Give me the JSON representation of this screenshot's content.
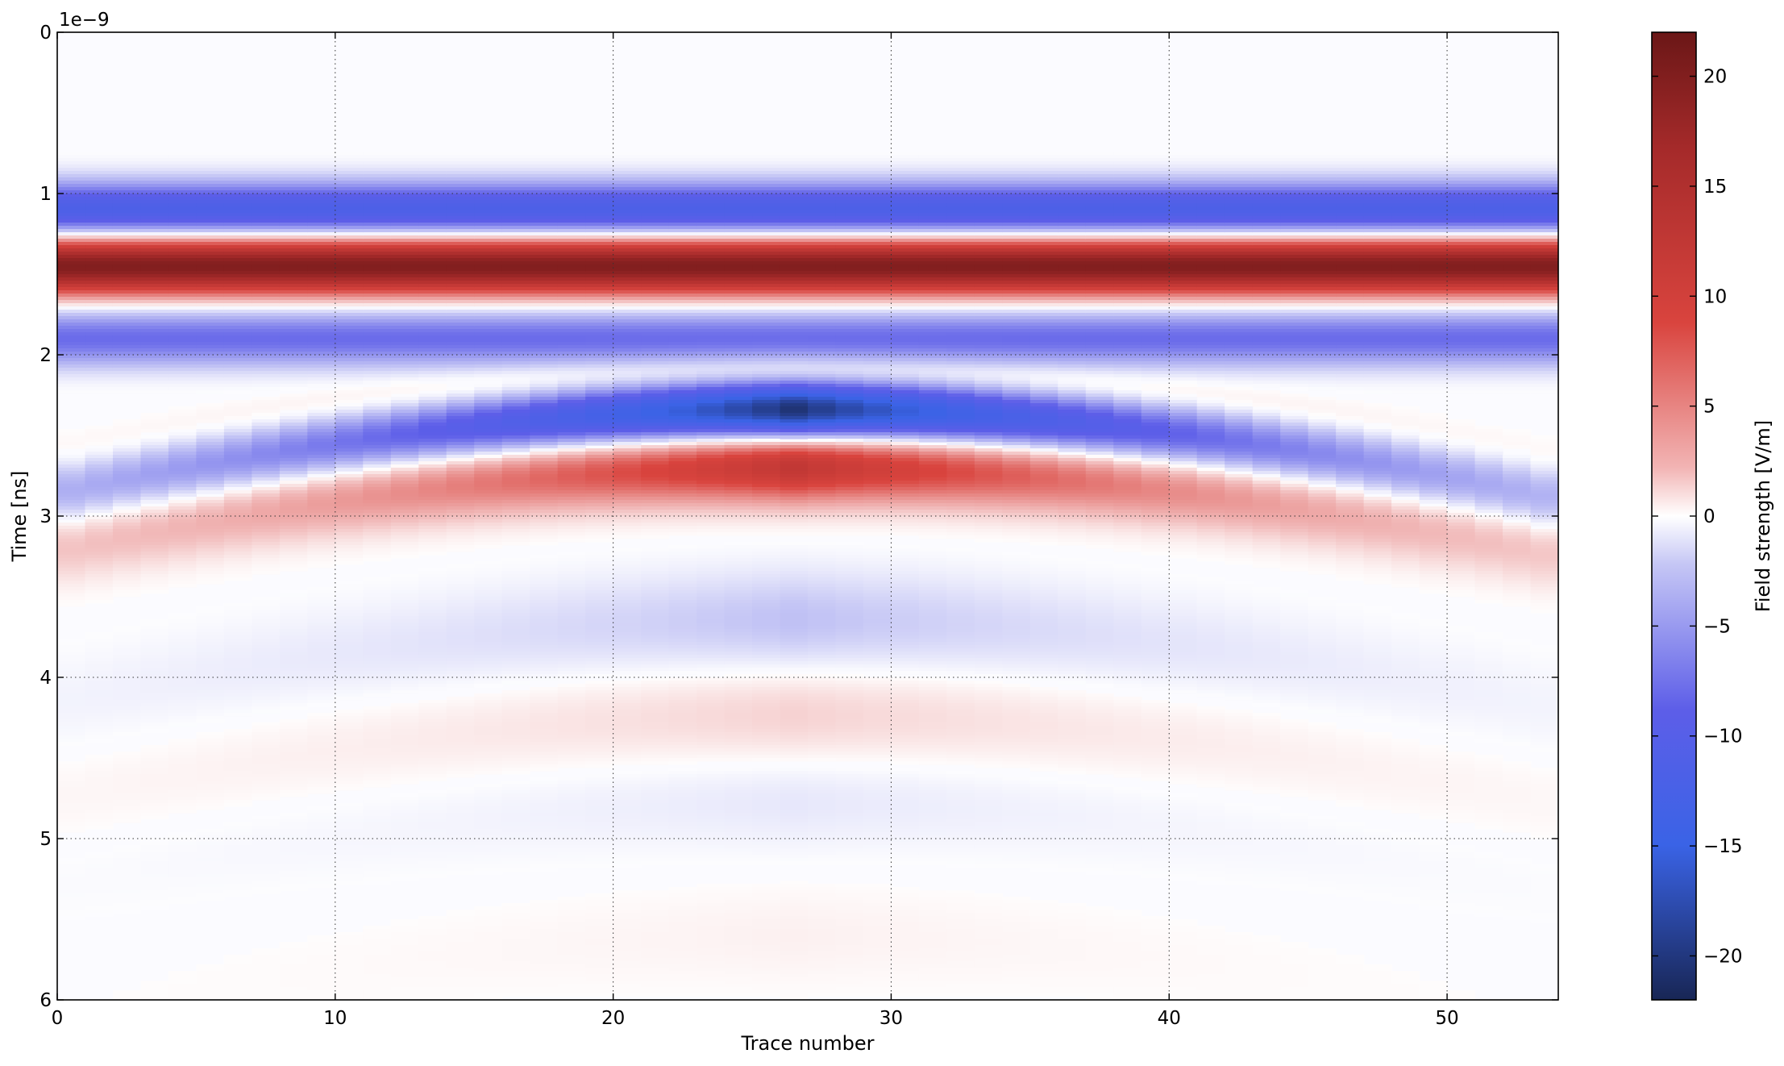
{
  "chart_data": {
    "type": "heatmap",
    "xlabel": "Trace number",
    "ylabel": "Time [ns]",
    "y_offset_text": "1e−9",
    "colorbar_label": "Field strength [V/m]",
    "x_range": [
      0,
      54
    ],
    "y_range": [
      0,
      6
    ],
    "y_inverted": true,
    "clim": [
      -22,
      22
    ],
    "colormap": "seismic-like (dark navy -> blue -> white -> red -> dark red)",
    "colors": {
      "min": "#1b2a5e",
      "low": "#3a63e6",
      "zero": "#ffffff",
      "high": "#cf3b35",
      "max": "#7a1a1a"
    },
    "grid": true,
    "x_ticks": [
      "0",
      "10",
      "20",
      "30",
      "40",
      "50"
    ],
    "x_tick_values": [
      0,
      10,
      20,
      30,
      40,
      50
    ],
    "y_ticks": [
      "0",
      "1",
      "2",
      "3",
      "4",
      "5",
      "6"
    ],
    "y_tick_values": [
      0,
      1,
      2,
      3,
      4,
      5,
      6
    ],
    "colorbar_ticks": [
      "20",
      "15",
      "10",
      "5",
      "0",
      "−5",
      "−10",
      "−15",
      "−20"
    ],
    "colorbar_tick_values": [
      20,
      15,
      10,
      5,
      0,
      -5,
      -10,
      -15,
      -20
    ],
    "num_traces": 54,
    "direct_wave": {
      "description": "horizontal bands across all traces",
      "bands": [
        {
          "time_ns": 1.1,
          "value": -12
        },
        {
          "time_ns": 1.45,
          "value": 20
        },
        {
          "time_ns": 1.9,
          "value": -8
        }
      ]
    },
    "hyperbola": {
      "apex_trace": 26.5,
      "apex_time_ns": 2.35,
      "peak_values": {
        "first_negative": -22,
        "positive": 13,
        "late_negative": -3,
        "late_positive": 2
      }
    }
  }
}
